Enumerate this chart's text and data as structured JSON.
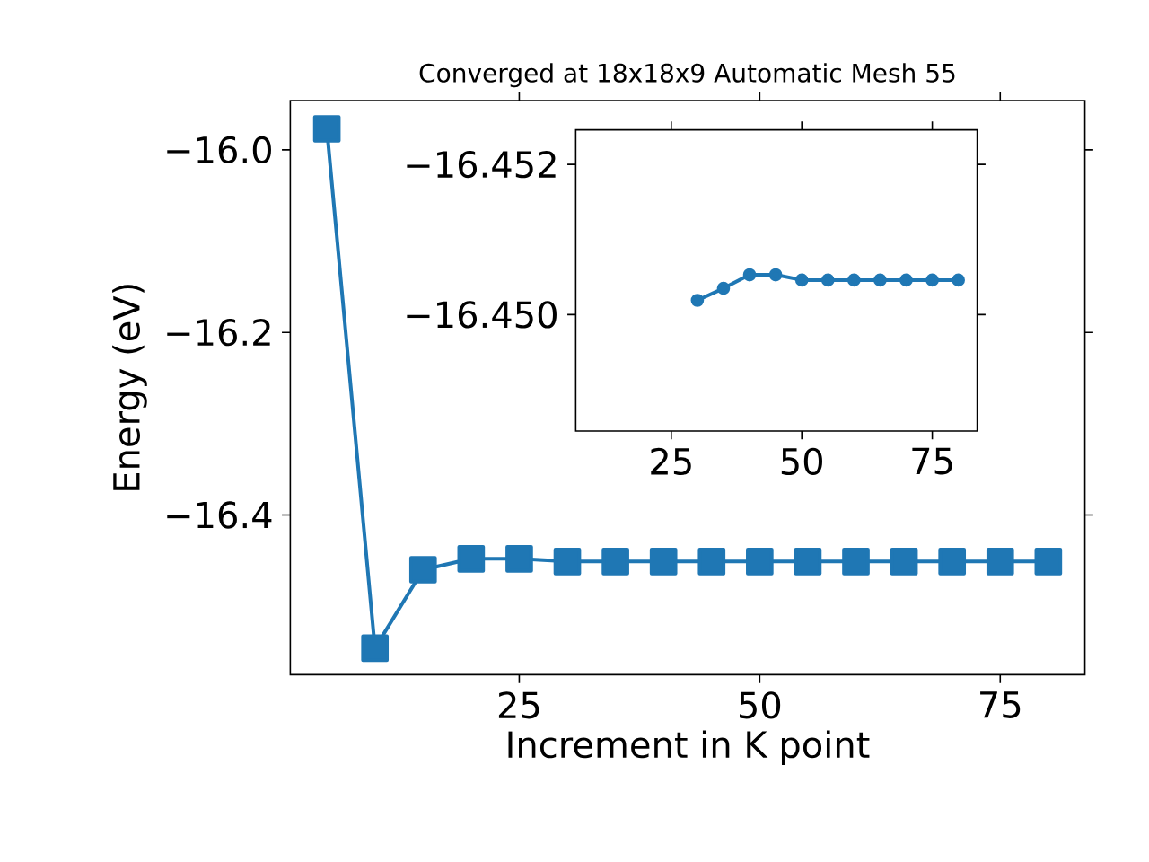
{
  "chart_data": [
    {
      "type": "line",
      "title": "Converged at 18x18x9 Automatic Mesh 55",
      "xlabel": "Increment in K point",
      "ylabel": "Energy (eV)",
      "color": "#1f77b4",
      "marker": "square",
      "x": [
        5,
        10,
        15,
        20,
        25,
        30,
        35,
        40,
        45,
        50,
        55,
        60,
        65,
        70,
        75,
        80
      ],
      "values": [
        -15.977,
        -16.546,
        -16.46,
        -16.448,
        -16.448,
        -16.451,
        -16.451,
        -16.451,
        -16.451,
        -16.451,
        -16.451,
        -16.451,
        -16.451,
        -16.451,
        -16.451,
        -16.451
      ],
      "xlim": [
        1.2,
        83.8
      ],
      "ylim": [
        -16.575,
        -15.946
      ],
      "xticks": [
        25,
        50,
        75
      ],
      "yticks": [
        {
          "value": -16.4,
          "label": "−16.4"
        },
        {
          "value": -16.2,
          "label": "−16.2"
        },
        {
          "value": -16.0,
          "label": "−16.0"
        }
      ]
    },
    {
      "type": "line",
      "color": "#1f77b4",
      "marker": "circle",
      "x": [
        30,
        35,
        40,
        45,
        50,
        55,
        60,
        65,
        70,
        75,
        80
      ],
      "values": [
        -16.45019,
        -16.45035,
        -16.45053,
        -16.45053,
        -16.45046,
        -16.45046,
        -16.45046,
        -16.45046,
        -16.45046,
        -16.45046,
        -16.45046
      ],
      "xlim": [
        6.7,
        83.6
      ],
      "ylim": [
        -16.44845,
        -16.45246
      ],
      "xticks": [
        25,
        50,
        75
      ],
      "yticks": [
        {
          "value": -16.452,
          "label": "−16.452"
        },
        {
          "value": -16.45,
          "label": "−16.450"
        }
      ]
    }
  ]
}
